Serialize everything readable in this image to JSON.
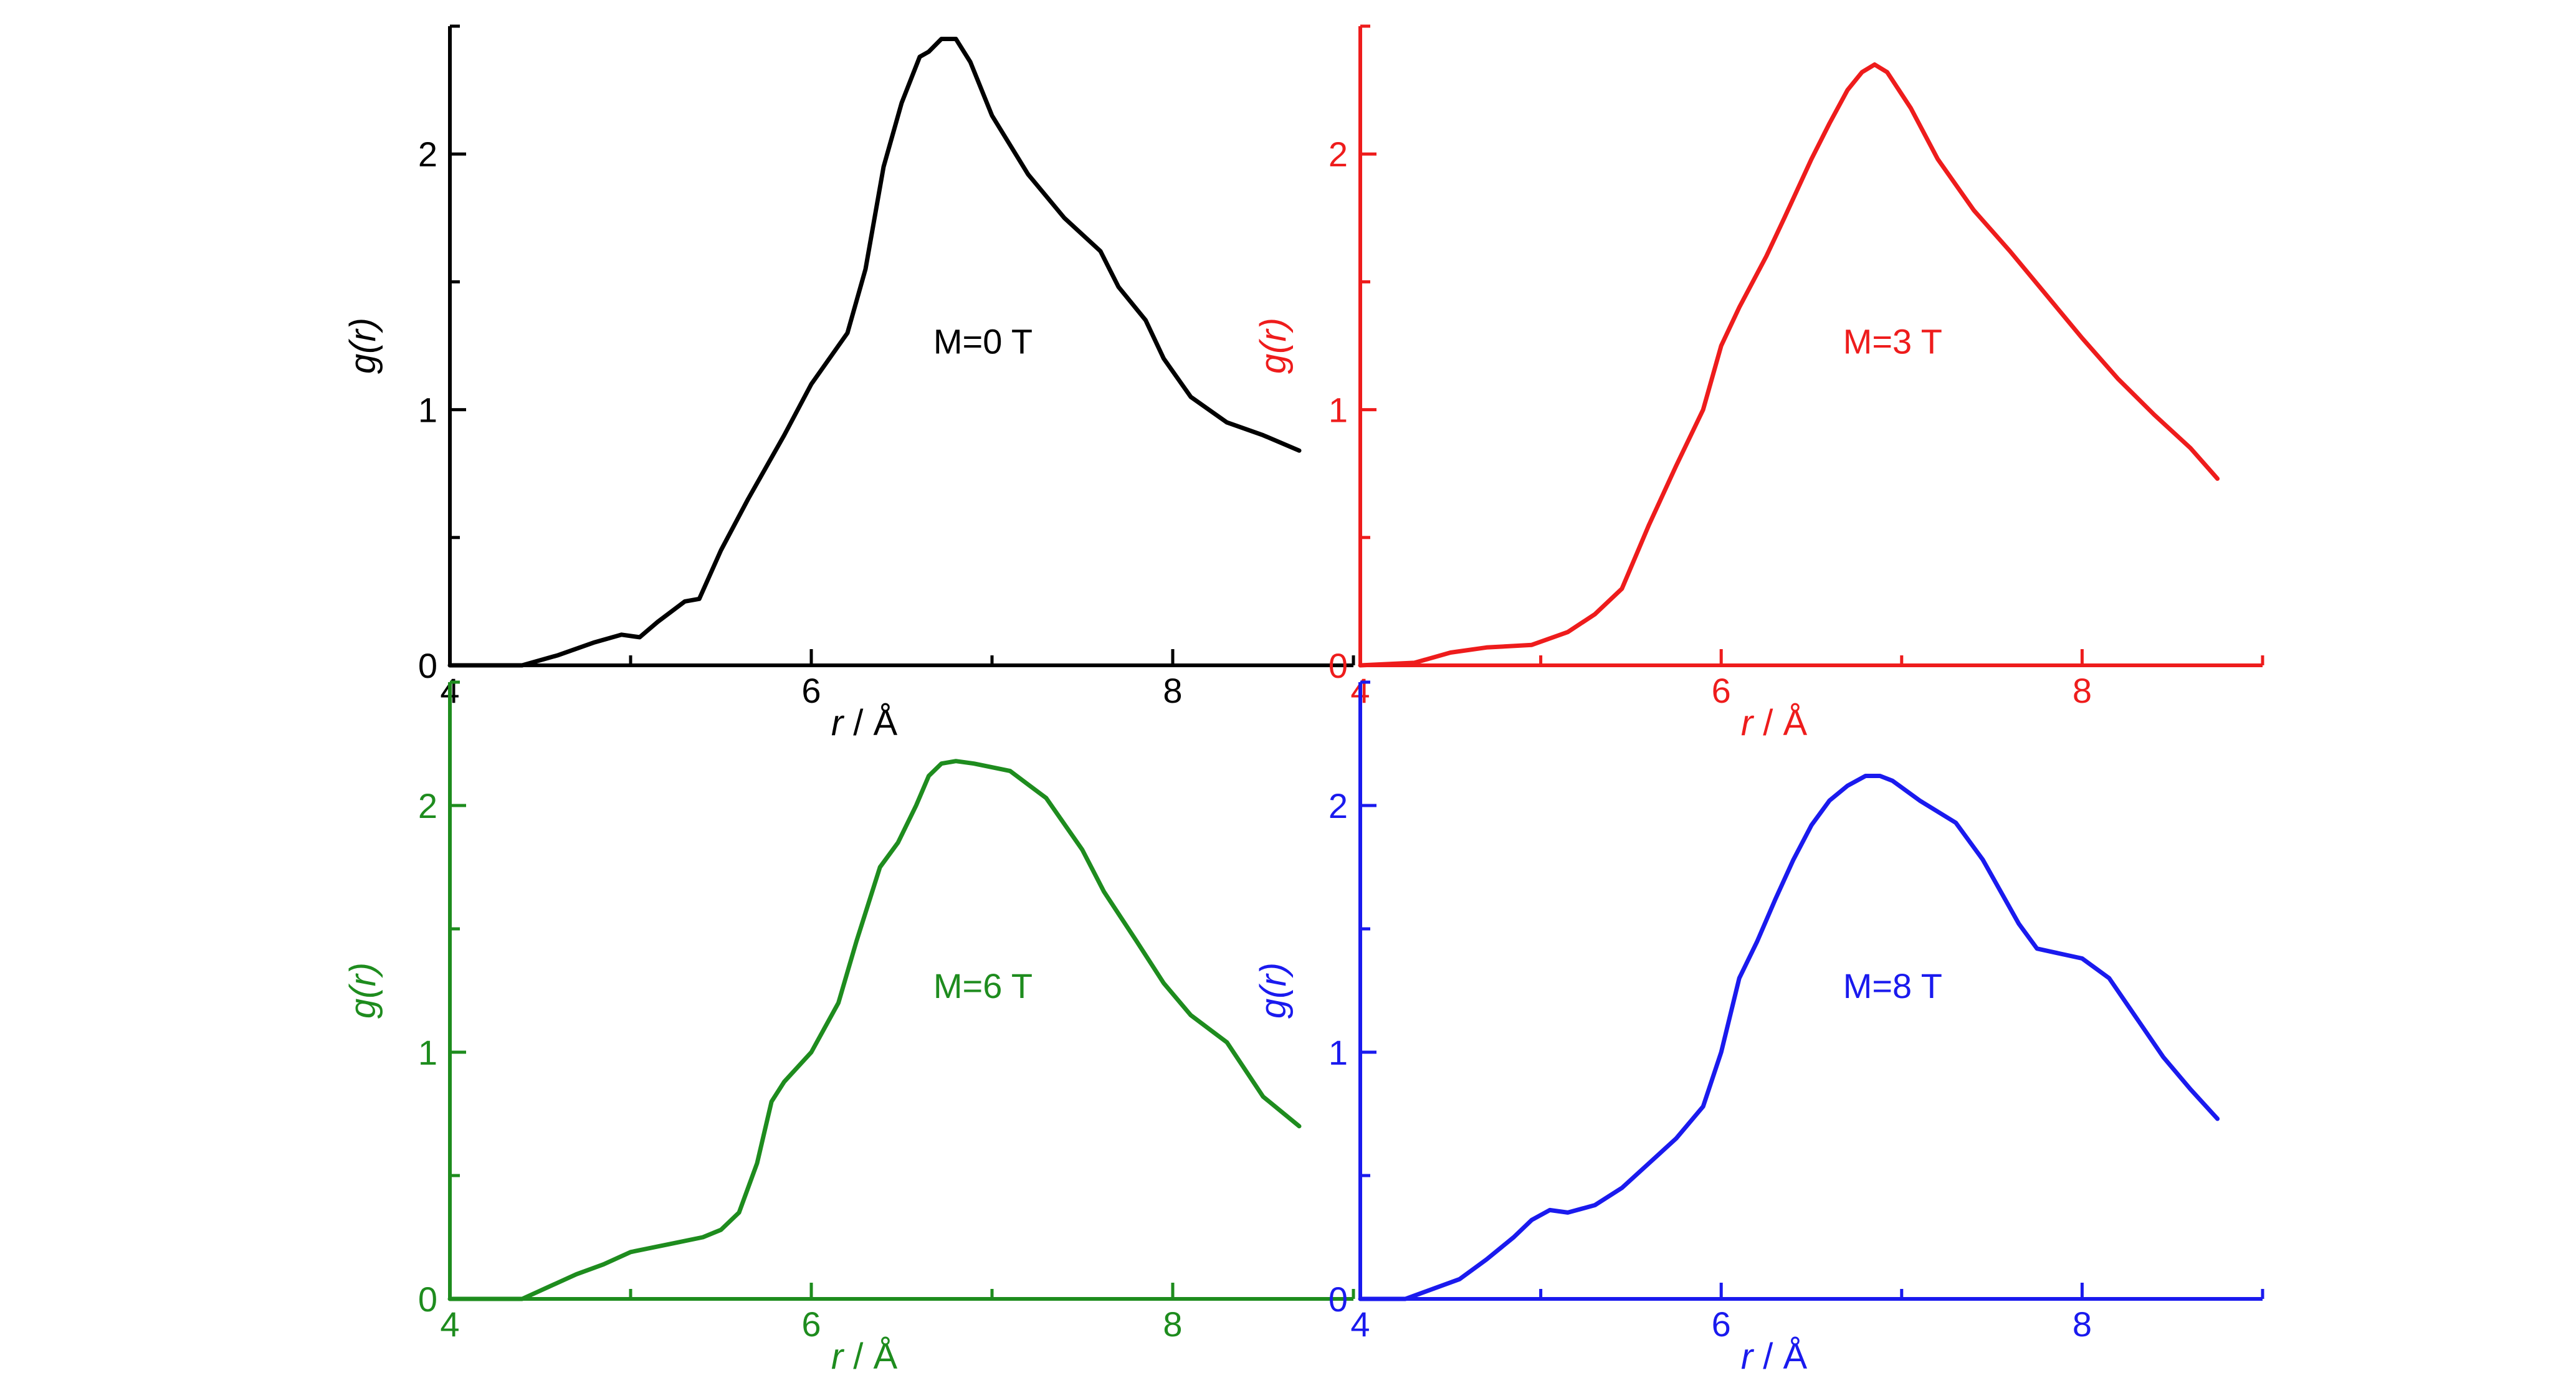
{
  "chart_data": [
    {
      "type": "line",
      "color": "#000000",
      "annotation": "M=0 T",
      "xlabel_var": "r",
      "xlabel_unit": " / Å",
      "ylabel_prefix": "g(",
      "ylabel_var": "r",
      "ylabel_suffix": ")",
      "xlim": [
        4,
        9
      ],
      "ylim": [
        0,
        2.5
      ],
      "xticks": [
        4,
        6,
        8
      ],
      "yticks": [
        0,
        1,
        2
      ],
      "grid": false,
      "x": [
        4.0,
        4.4,
        4.6,
        4.8,
        4.95,
        5.05,
        5.15,
        5.3,
        5.38,
        5.5,
        5.65,
        5.85,
        6.0,
        6.2,
        6.3,
        6.4,
        6.5,
        6.6,
        6.65,
        6.72,
        6.8,
        6.88,
        7.0,
        7.2,
        7.4,
        7.6,
        7.7,
        7.85,
        7.95,
        8.1,
        8.3,
        8.5,
        8.7
      ],
      "y": [
        0.0,
        0.0,
        0.04,
        0.09,
        0.12,
        0.11,
        0.17,
        0.25,
        0.26,
        0.45,
        0.65,
        0.9,
        1.1,
        1.3,
        1.55,
        1.95,
        2.2,
        2.38,
        2.4,
        2.45,
        2.45,
        2.36,
        2.15,
        1.92,
        1.75,
        1.62,
        1.48,
        1.35,
        1.2,
        1.05,
        0.95,
        0.9,
        0.84
      ]
    },
    {
      "type": "line",
      "color": "#ee1c1c",
      "annotation": "M=3 T",
      "xlabel_var": "r",
      "xlabel_unit": " / Å",
      "ylabel_prefix": "g(",
      "ylabel_var": "r",
      "ylabel_suffix": ")",
      "xlim": [
        4,
        9
      ],
      "ylim": [
        0,
        2.5
      ],
      "xticks": [
        4,
        6,
        8
      ],
      "yticks": [
        0,
        1,
        2
      ],
      "grid": false,
      "x": [
        4.0,
        4.3,
        4.5,
        4.7,
        4.95,
        5.15,
        5.3,
        5.45,
        5.6,
        5.75,
        5.9,
        6.0,
        6.1,
        6.25,
        6.35,
        6.5,
        6.6,
        6.7,
        6.78,
        6.85,
        6.92,
        7.05,
        7.2,
        7.4,
        7.6,
        7.8,
        8.0,
        8.2,
        8.4,
        8.6,
        8.75
      ],
      "y": [
        0.0,
        0.01,
        0.05,
        0.07,
        0.08,
        0.13,
        0.2,
        0.3,
        0.55,
        0.78,
        1.0,
        1.25,
        1.4,
        1.6,
        1.75,
        1.98,
        2.12,
        2.25,
        2.32,
        2.35,
        2.32,
        2.18,
        1.98,
        1.78,
        1.62,
        1.45,
        1.28,
        1.12,
        0.98,
        0.85,
        0.73
      ]
    },
    {
      "type": "line",
      "color": "#1e8c1e",
      "annotation": "M=6 T",
      "xlabel_var": "r",
      "xlabel_unit": " / Å",
      "ylabel_prefix": "g(",
      "ylabel_var": "r",
      "ylabel_suffix": ")",
      "xlim": [
        4,
        9
      ],
      "ylim": [
        0,
        2.5
      ],
      "xticks": [
        4,
        6,
        8
      ],
      "yticks": [
        0,
        1,
        2
      ],
      "grid": false,
      "x": [
        4.0,
        4.4,
        4.55,
        4.7,
        4.85,
        5.0,
        5.2,
        5.4,
        5.5,
        5.6,
        5.7,
        5.78,
        5.85,
        6.0,
        6.15,
        6.25,
        6.38,
        6.48,
        6.58,
        6.65,
        6.72,
        6.8,
        6.9,
        7.1,
        7.3,
        7.5,
        7.62,
        7.8,
        7.95,
        8.1,
        8.3,
        8.5,
        8.7
      ],
      "y": [
        0.0,
        0.0,
        0.05,
        0.1,
        0.14,
        0.19,
        0.22,
        0.25,
        0.28,
        0.35,
        0.55,
        0.8,
        0.88,
        1.0,
        1.2,
        1.45,
        1.75,
        1.85,
        2.0,
        2.12,
        2.17,
        2.18,
        2.17,
        2.14,
        2.03,
        1.82,
        1.65,
        1.45,
        1.28,
        1.15,
        1.04,
        0.82,
        0.7
      ]
    },
    {
      "type": "line",
      "color": "#1a1aee",
      "annotation": "M=8 T",
      "xlabel_var": "r",
      "xlabel_unit": " / Å",
      "ylabel_prefix": "g(",
      "ylabel_var": "r",
      "ylabel_suffix": ")",
      "xlim": [
        4,
        9
      ],
      "ylim": [
        0,
        2.5
      ],
      "xticks": [
        4,
        6,
        8
      ],
      "yticks": [
        0,
        1,
        2
      ],
      "grid": false,
      "x": [
        4.0,
        4.25,
        4.4,
        4.55,
        4.7,
        4.85,
        4.95,
        5.05,
        5.15,
        5.3,
        5.45,
        5.6,
        5.75,
        5.9,
        6.0,
        6.1,
        6.2,
        6.3,
        6.4,
        6.5,
        6.6,
        6.7,
        6.8,
        6.88,
        6.95,
        7.1,
        7.3,
        7.45,
        7.65,
        7.75,
        8.0,
        8.15,
        8.3,
        8.45,
        8.6,
        8.75
      ],
      "y": [
        0.0,
        0.0,
        0.04,
        0.08,
        0.16,
        0.25,
        0.32,
        0.36,
        0.35,
        0.38,
        0.45,
        0.55,
        0.65,
        0.78,
        1.0,
        1.3,
        1.45,
        1.62,
        1.78,
        1.92,
        2.02,
        2.08,
        2.12,
        2.12,
        2.1,
        2.02,
        1.93,
        1.78,
        1.52,
        1.42,
        1.38,
        1.3,
        1.14,
        0.98,
        0.85,
        0.73
      ]
    }
  ]
}
